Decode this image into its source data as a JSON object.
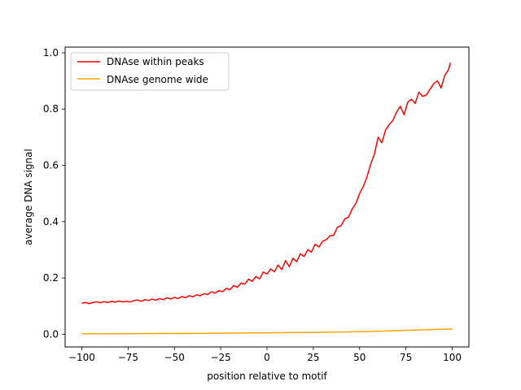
{
  "chart_data": {
    "type": "line",
    "xlabel": "position relative to motif",
    "ylabel": "average DNA signal",
    "xlim": [
      -109,
      109
    ],
    "ylim": [
      -0.045,
      1.02
    ],
    "xticks": [
      -100,
      -75,
      -50,
      -25,
      0,
      25,
      50,
      75,
      100
    ],
    "xtick_labels": [
      "−100",
      "−75",
      "−50",
      "−25",
      "0",
      "25",
      "50",
      "75",
      "100"
    ],
    "yticks": [
      0.0,
      0.2,
      0.4,
      0.6,
      0.8,
      1.0
    ],
    "ytick_labels": [
      "0.0",
      "0.2",
      "0.4",
      "0.6",
      "0.8",
      "1.0"
    ],
    "grid": false,
    "legend_position": "top-left",
    "series": [
      {
        "name": "DNAse within peaks",
        "color": "#ff0000",
        "x": [
          -100,
          -98,
          -96,
          -94,
          -92,
          -90,
          -88,
          -86,
          -84,
          -82,
          -80,
          -78,
          -76,
          -74,
          -72,
          -70,
          -68,
          -66,
          -64,
          -62,
          -60,
          -58,
          -56,
          -54,
          -52,
          -50,
          -48,
          -46,
          -44,
          -42,
          -40,
          -38,
          -36,
          -34,
          -32,
          -30,
          -28,
          -26,
          -24,
          -22,
          -20,
          -18,
          -16,
          -14,
          -12,
          -10,
          -8,
          -6,
          -4,
          -2,
          0,
          2,
          4,
          6,
          8,
          10,
          12,
          14,
          16,
          18,
          20,
          22,
          24,
          26,
          28,
          30,
          32,
          34,
          36,
          38,
          40,
          42,
          44,
          46,
          48,
          50,
          52,
          54,
          56,
          58,
          60,
          62,
          64,
          66,
          68,
          70,
          72,
          74,
          76,
          78,
          80,
          82,
          84,
          86,
          88,
          90,
          92,
          94,
          96,
          98,
          99
        ],
        "values": [
          0.11,
          0.113,
          0.109,
          0.113,
          0.115,
          0.112,
          0.116,
          0.113,
          0.117,
          0.114,
          0.118,
          0.115,
          0.117,
          0.115,
          0.119,
          0.122,
          0.117,
          0.123,
          0.12,
          0.125,
          0.121,
          0.127,
          0.123,
          0.13,
          0.125,
          0.131,
          0.127,
          0.134,
          0.13,
          0.137,
          0.133,
          0.14,
          0.137,
          0.144,
          0.141,
          0.151,
          0.146,
          0.155,
          0.151,
          0.163,
          0.158,
          0.173,
          0.167,
          0.182,
          0.178,
          0.196,
          0.188,
          0.205,
          0.197,
          0.221,
          0.214,
          0.232,
          0.222,
          0.246,
          0.23,
          0.262,
          0.24,
          0.27,
          0.258,
          0.286,
          0.276,
          0.3,
          0.292,
          0.32,
          0.31,
          0.33,
          0.336,
          0.35,
          0.352,
          0.38,
          0.386,
          0.41,
          0.416,
          0.445,
          0.465,
          0.5,
          0.525,
          0.56,
          0.605,
          0.64,
          0.7,
          0.68,
          0.725,
          0.745,
          0.76,
          0.79,
          0.81,
          0.78,
          0.825,
          0.835,
          0.82,
          0.86,
          0.845,
          0.85,
          0.87,
          0.89,
          0.9,
          0.875,
          0.92,
          0.94,
          0.965
        ]
      },
      {
        "name": "DNAse genome wide",
        "color": "#ffa500",
        "x": [
          -100,
          -80,
          -60,
          -40,
          -20,
          0,
          20,
          40,
          50,
          60,
          70,
          80,
          90,
          100
        ],
        "values": [
          0.002,
          0.002,
          0.0025,
          0.003,
          0.004,
          0.005,
          0.0065,
          0.008,
          0.009,
          0.011,
          0.013,
          0.015,
          0.017,
          0.019
        ]
      }
    ]
  }
}
